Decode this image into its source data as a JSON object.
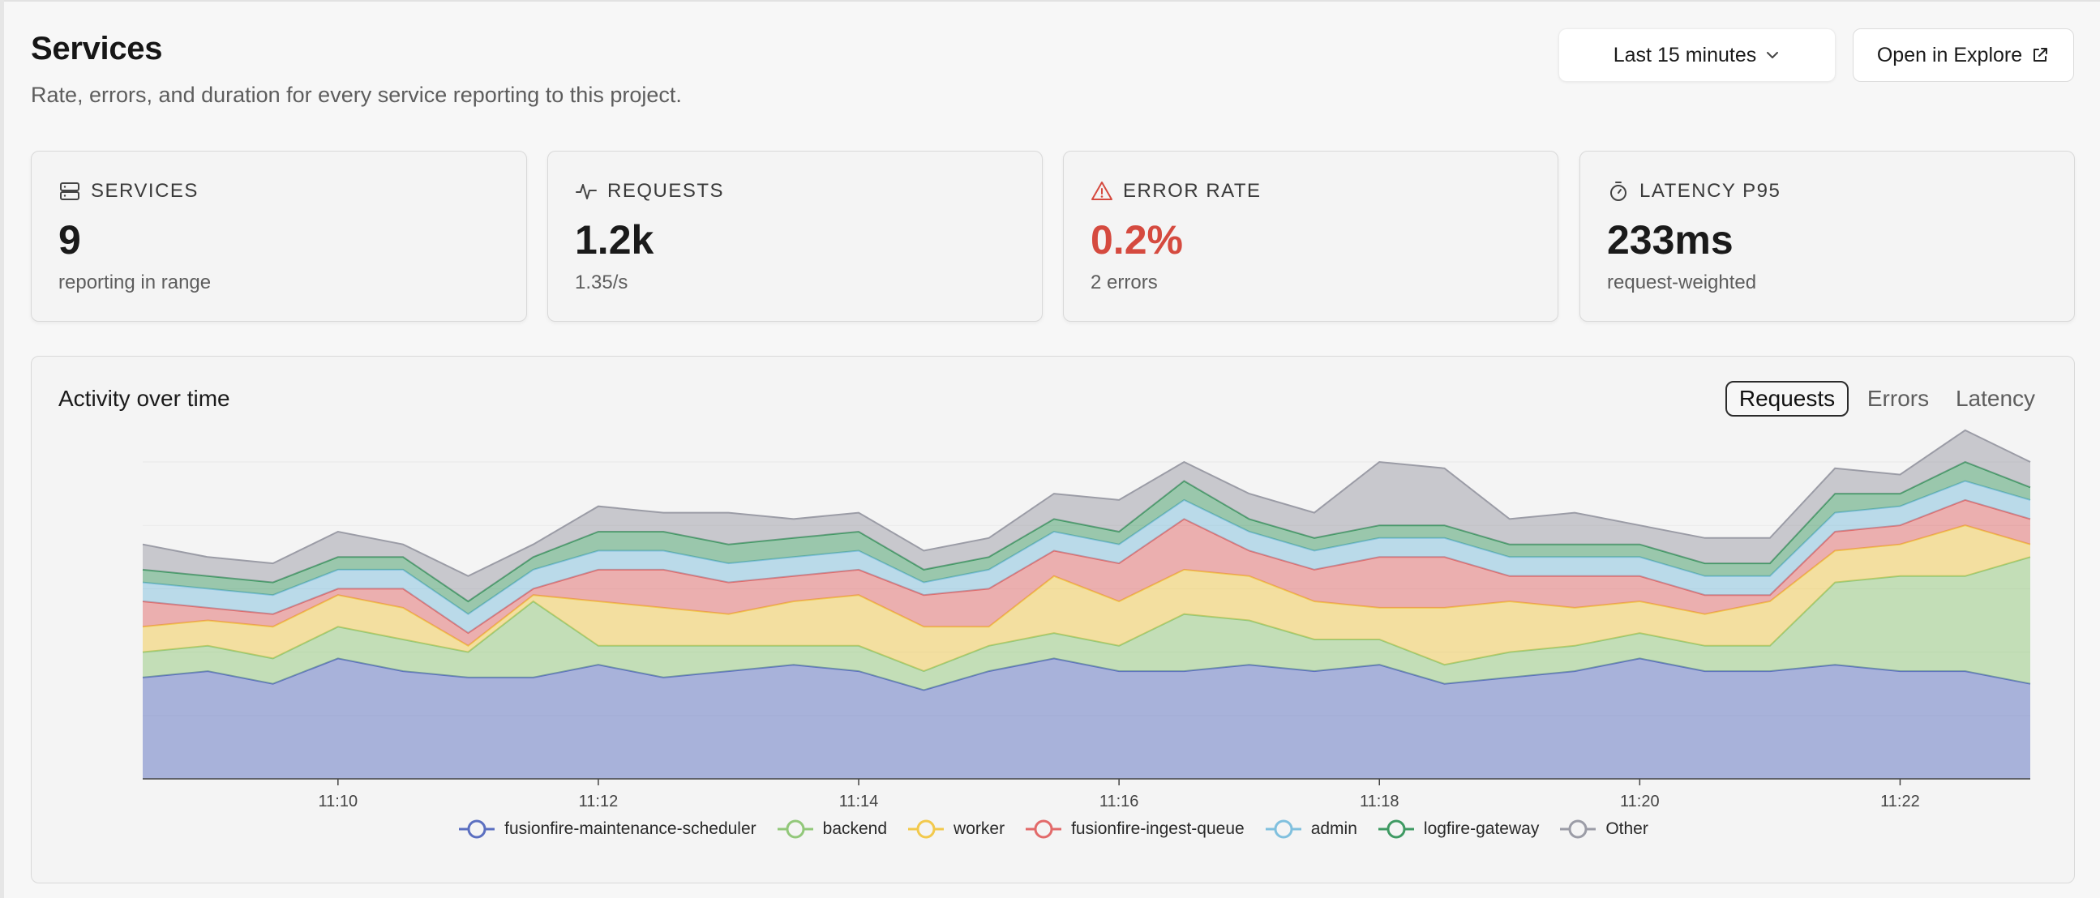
{
  "header": {
    "title": "Services",
    "subtitle": "Rate, errors, and duration for every service reporting to this project.",
    "time_range_label": "Last 15 minutes",
    "explore_label": "Open in Explore"
  },
  "cards": [
    {
      "label": "SERVICES",
      "value": "9",
      "sub": "reporting in range",
      "icon": "server-icon"
    },
    {
      "label": "REQUESTS",
      "value": "1.2k",
      "sub": "1.35/s",
      "icon": "activity-icon"
    },
    {
      "label": "ERROR RATE",
      "value": "0.2%",
      "sub": "2 errors",
      "icon": "warning-icon"
    },
    {
      "label": "LATENCY P95",
      "value": "233ms",
      "sub": "request-weighted",
      "icon": "stopwatch-icon"
    }
  ],
  "panel": {
    "title": "Activity over time",
    "tabs": [
      "Requests",
      "Errors",
      "Latency"
    ],
    "active_tab": "Requests"
  },
  "colors": {
    "error": "#d54a3f",
    "fusionfire-maintenance-scheduler": "#5b6fc0",
    "backend": "#92c87a",
    "worker": "#f2c94c",
    "fusionfire-ingest-queue": "#e26a6a",
    "admin": "#80c0de",
    "logfire-gateway": "#3f9a63",
    "Other": "#9b9ca6"
  },
  "chart_data": {
    "type": "area",
    "stacked": true,
    "x": [
      "11:08:30",
      "11:09:00",
      "11:09:30",
      "11:10:00",
      "11:10:30",
      "11:11:00",
      "11:11:30",
      "11:12:00",
      "11:12:30",
      "11:13:00",
      "11:13:30",
      "11:14:00",
      "11:14:30",
      "11:15:00",
      "11:15:30",
      "11:16:00",
      "11:16:30",
      "11:17:00",
      "11:17:30",
      "11:18:00",
      "11:18:30",
      "11:19:00",
      "11:19:30",
      "11:20:00",
      "11:20:30",
      "11:21:00",
      "11:21:30",
      "11:22:00",
      "11:22:30",
      "11:23:00"
    ],
    "x_ticks": [
      "11:10",
      "11:12",
      "11:14",
      "11:16",
      "11:18",
      "11:20",
      "11:22"
    ],
    "ylim": [
      0,
      50
    ],
    "y_ticks": [
      0,
      10,
      20,
      30,
      40,
      50
    ],
    "grid": true,
    "legend_position": "bottom",
    "series": [
      {
        "name": "fusionfire-maintenance-scheduler",
        "values": [
          16,
          17,
          15,
          19,
          17,
          16,
          16,
          18,
          16,
          17,
          18,
          17,
          14,
          17,
          19,
          17,
          17,
          18,
          17,
          18,
          15,
          16,
          17,
          19,
          17,
          17,
          18,
          17,
          17,
          15
        ]
      },
      {
        "name": "backend",
        "values": [
          4,
          4,
          4,
          5,
          5,
          4,
          12,
          3,
          5,
          4,
          3,
          4,
          3,
          4,
          4,
          4,
          9,
          7,
          5,
          4,
          3,
          4,
          4,
          4,
          4,
          4,
          13,
          15,
          15,
          20
        ]
      },
      {
        "name": "worker",
        "values": [
          4,
          4,
          5,
          5,
          5,
          1,
          1,
          7,
          6,
          5,
          7,
          8,
          7,
          3,
          9,
          7,
          7,
          7,
          6,
          5,
          9,
          8,
          6,
          5,
          5,
          7,
          5,
          5,
          8,
          2
        ]
      },
      {
        "name": "fusionfire-ingest-queue",
        "values": [
          4,
          2,
          2,
          1,
          3,
          2,
          1,
          5,
          6,
          5,
          4,
          4,
          5,
          6,
          4,
          6,
          8,
          4,
          5,
          8,
          8,
          4,
          5,
          4,
          3,
          1,
          3,
          3,
          4,
          4
        ]
      },
      {
        "name": "admin",
        "values": [
          3,
          3,
          3,
          3,
          3,
          3,
          3,
          3,
          3,
          3,
          3,
          3,
          2,
          3,
          3,
          3,
          3,
          3,
          3,
          3,
          3,
          3,
          3,
          3,
          3,
          3,
          3,
          3,
          3,
          3
        ]
      },
      {
        "name": "logfire-gateway",
        "values": [
          2,
          2,
          2,
          2,
          2,
          2,
          2,
          3,
          3,
          3,
          3,
          3,
          2,
          2,
          2,
          2,
          3,
          2,
          2,
          2,
          2,
          2,
          2,
          2,
          2,
          2,
          3,
          2,
          3,
          2
        ]
      },
      {
        "name": "Other",
        "values": [
          4,
          3,
          3,
          4,
          2,
          4,
          2,
          4,
          3,
          5,
          3,
          3,
          3,
          3,
          4,
          5,
          3,
          4,
          4,
          10,
          9,
          4,
          5,
          3,
          4,
          4,
          4,
          3,
          5,
          4
        ]
      }
    ]
  }
}
